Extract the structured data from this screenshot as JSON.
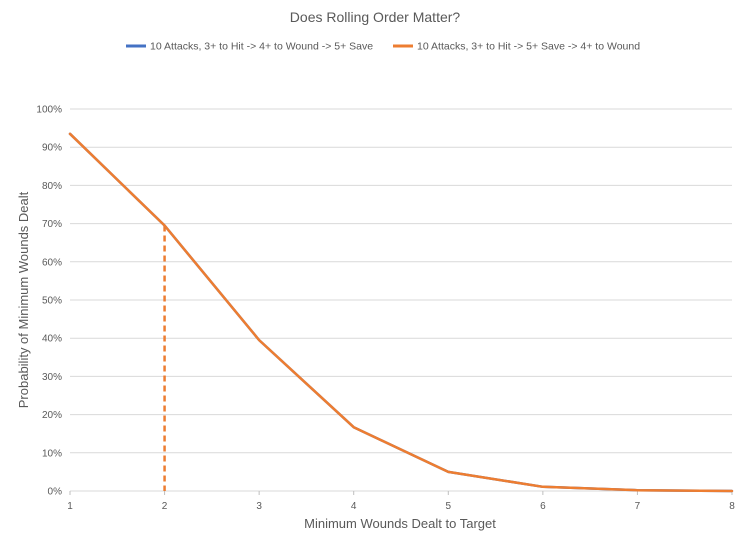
{
  "chart_data": {
    "type": "line",
    "title": "Does Rolling Order Matter?",
    "xlabel": "Minimum Wounds Dealt to Target",
    "ylabel": "Probability of Minimum Wounds Dealt",
    "x": [
      1,
      2,
      3,
      4,
      5,
      6,
      7,
      8
    ],
    "xlim": [
      1,
      8
    ],
    "ylim": [
      0,
      1
    ],
    "y_ticks": [
      "0%",
      "10%",
      "20%",
      "30%",
      "40%",
      "50%",
      "60%",
      "70%",
      "80%",
      "90%",
      "100%"
    ],
    "grid": true,
    "legend_position": "top",
    "series": [
      {
        "name": "10 Attacks, 3+ to Hit -> 4+ to Wound -> 5+ Save",
        "color": "#4472c4",
        "values": [
          0.935,
          0.695,
          0.395,
          0.167,
          0.05,
          0.011,
          0.002,
          0.0
        ]
      },
      {
        "name": "10 Attacks, 3+ to Hit -> 5+ Save -> 4+ to Wound",
        "color": "#ed7d31",
        "values": [
          0.935,
          0.695,
          0.395,
          0.167,
          0.05,
          0.011,
          0.002,
          0.0
        ]
      }
    ],
    "annotation": {
      "type": "dashed-drop-line",
      "x": 2,
      "y": 0.695,
      "color": "#ed7d31"
    }
  }
}
